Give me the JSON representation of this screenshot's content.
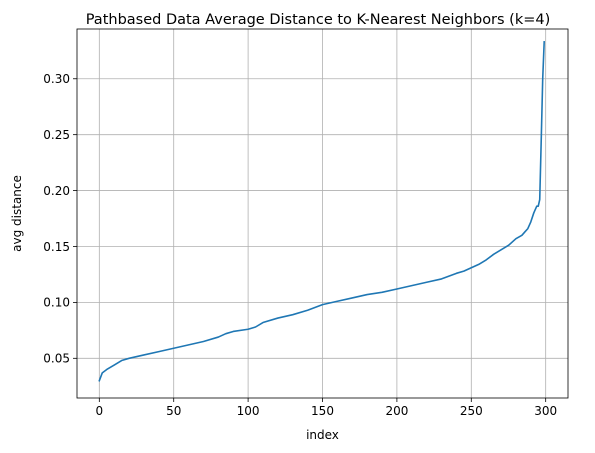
{
  "chart_data": {
    "type": "line",
    "title": "Pathbased Data Average Distance to K-Nearest Neighbors (k=4)",
    "xlabel": "index",
    "ylabel": "avg distance",
    "xlim": [
      -15,
      315
    ],
    "ylim": [
      0.0145,
      0.3445
    ],
    "xticks": [
      0,
      50,
      100,
      150,
      200,
      250,
      300
    ],
    "yticks": [
      0.05,
      0.1,
      0.15,
      0.2,
      0.25,
      0.3
    ],
    "xtick_labels": [
      "0",
      "50",
      "100",
      "150",
      "200",
      "250",
      "300"
    ],
    "ytick_labels": [
      "0.05",
      "0.10",
      "0.15",
      "0.20",
      "0.25",
      "0.30"
    ],
    "grid": true,
    "series_color": "#1f77b4",
    "series": [
      {
        "x": [
          0,
          2,
          5,
          10,
          15,
          20,
          30,
          40,
          50,
          60,
          70,
          80,
          85,
          90,
          100,
          105,
          110,
          120,
          130,
          140,
          150,
          160,
          170,
          180,
          190,
          200,
          210,
          220,
          230,
          240,
          245,
          250,
          255,
          260,
          265,
          270,
          275,
          280,
          284,
          286,
          288,
          290,
          292,
          294,
          295,
          296,
          297,
          298,
          299
        ],
        "y": [
          0.03,
          0.037,
          0.04,
          0.044,
          0.048,
          0.05,
          0.053,
          0.056,
          0.059,
          0.062,
          0.065,
          0.069,
          0.072,
          0.074,
          0.076,
          0.078,
          0.082,
          0.086,
          0.089,
          0.093,
          0.098,
          0.101,
          0.104,
          0.107,
          0.109,
          0.112,
          0.115,
          0.118,
          0.121,
          0.126,
          0.128,
          0.131,
          0.134,
          0.138,
          0.143,
          0.147,
          0.151,
          0.157,
          0.16,
          0.163,
          0.166,
          0.172,
          0.18,
          0.186,
          0.186,
          0.192,
          0.245,
          0.3,
          0.333
        ]
      }
    ]
  }
}
